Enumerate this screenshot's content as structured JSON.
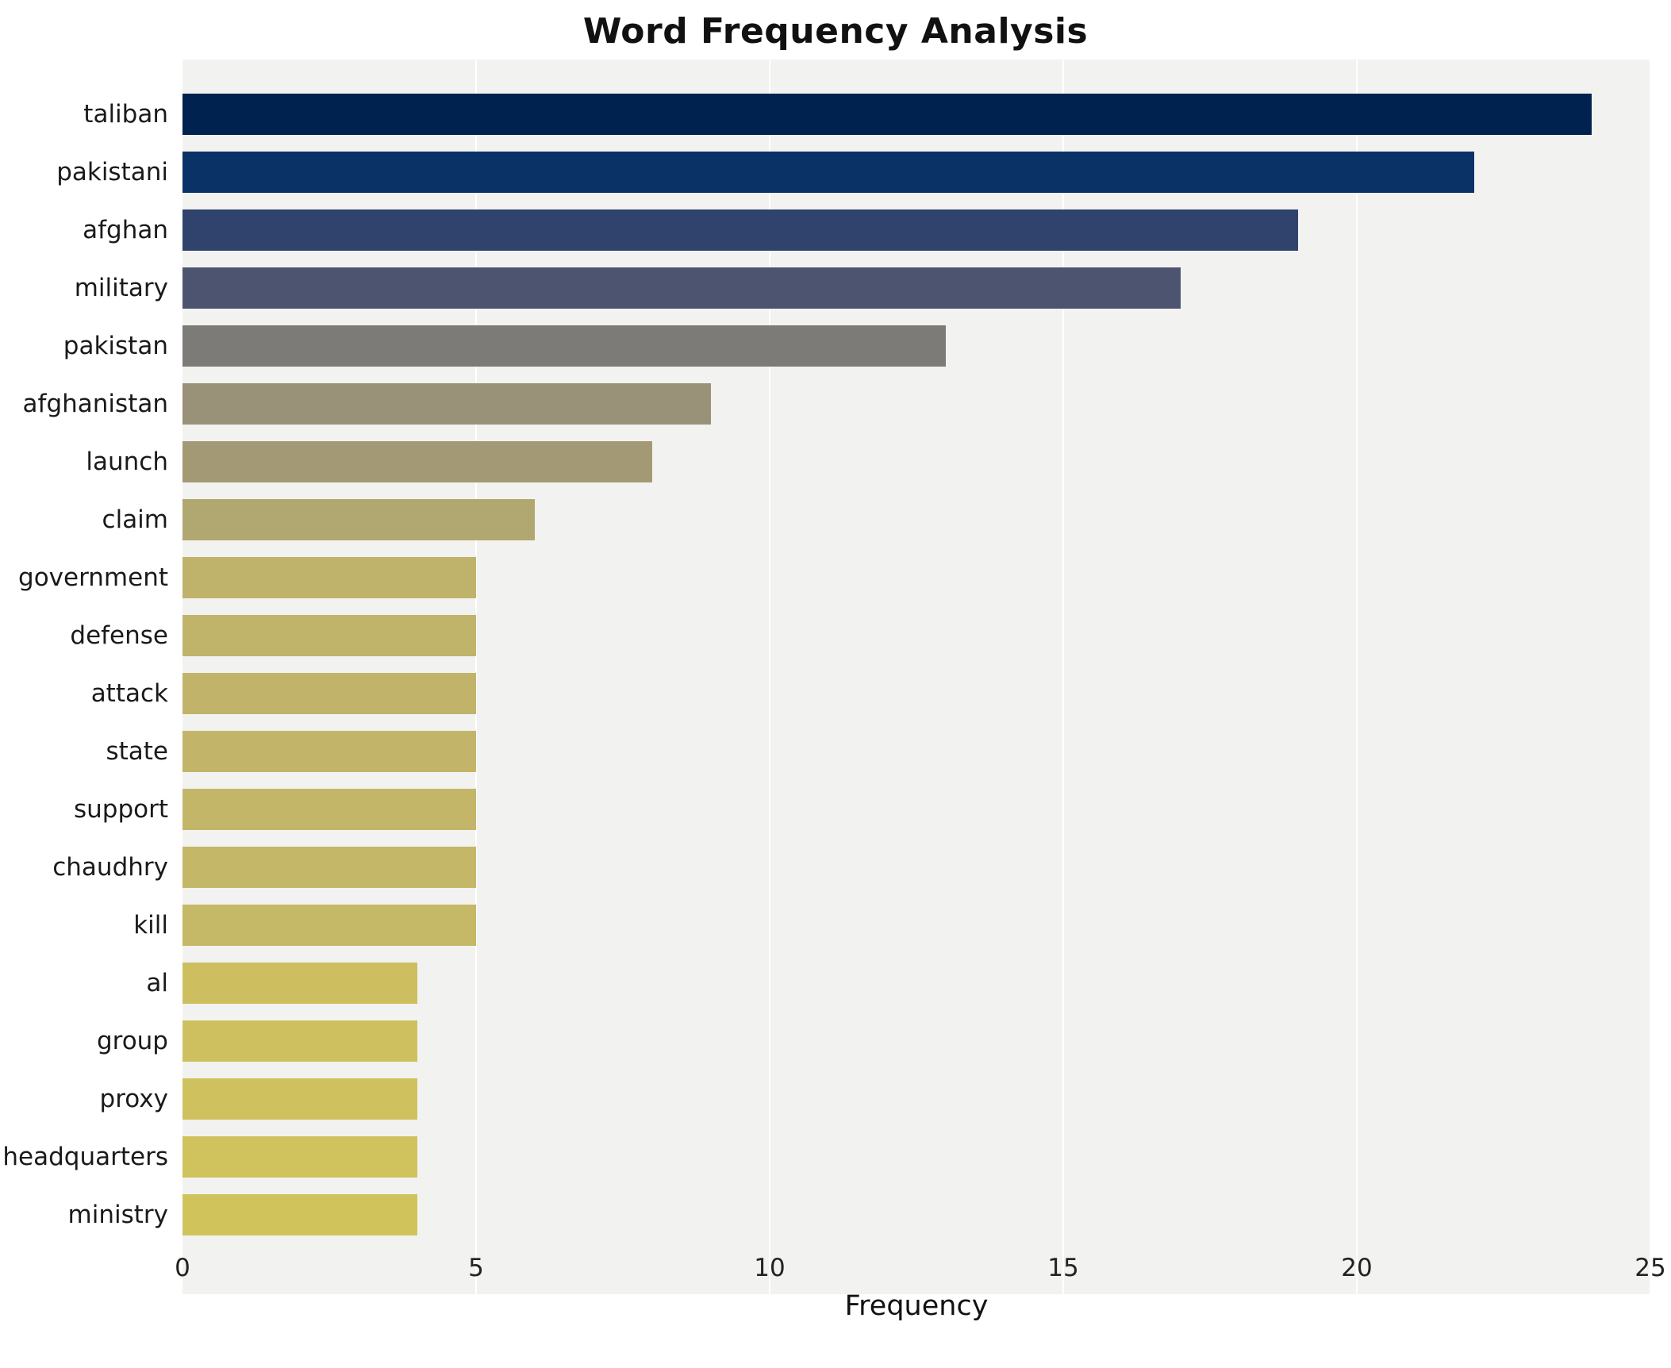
{
  "title": "Word Frequency Analysis",
  "chart_data": {
    "type": "bar",
    "orientation": "horizontal",
    "title": "Word Frequency Analysis",
    "xlabel": "Frequency",
    "ylabel": "",
    "xlim": [
      0,
      25
    ],
    "xticks": [
      0,
      5,
      10,
      15,
      20,
      25
    ],
    "grid": true,
    "legend": "none",
    "plot_background": "#f2f2f0",
    "gridline_color": "#ffffff",
    "categories": [
      "taliban",
      "pakistani",
      "afghan",
      "military",
      "pakistan",
      "afghanistan",
      "launch",
      "claim",
      "government",
      "defense",
      "attack",
      "state",
      "support",
      "chaudhry",
      "kill",
      "al",
      "group",
      "proxy",
      "headquarters",
      "ministry"
    ],
    "values": [
      24,
      22,
      19,
      17,
      13,
      9,
      8,
      6,
      5,
      5,
      5,
      5,
      5,
      5,
      5,
      4,
      4,
      4,
      4,
      4
    ],
    "bar_colors": [
      "#00224e",
      "#0b3266",
      "#2f436c",
      "#4d5470",
      "#7c7b78",
      "#999178",
      "#a39a75",
      "#b1a771",
      "#bfb26b",
      "#c0b36a",
      "#c1b46a",
      "#c2b569",
      "#c3b668",
      "#c4b768",
      "#c5b867",
      "#cdbf60",
      "#cec05f",
      "#cfc15e",
      "#d0c25d",
      "#d1c35c"
    ]
  }
}
